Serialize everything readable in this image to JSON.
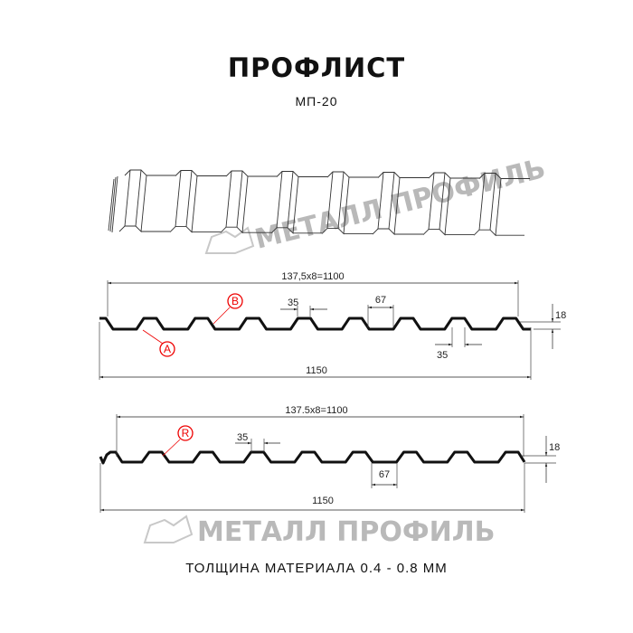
{
  "title": "ПРОФЛИСТ",
  "subtitle": "МП-20",
  "watermark": "МЕТАЛЛ ПРОФИЛЬ",
  "colors": {
    "profile": "#111111",
    "callout": "#e00000",
    "watermark": "#b9b9b9"
  },
  "profile1": {
    "pitch_label": "137,5x8=1100",
    "total_label": "1150",
    "top_label": "35",
    "bottom_label": "35",
    "rib_label": "67",
    "height_label": "18",
    "callouts": [
      "B",
      "A"
    ]
  },
  "profile2": {
    "pitch_label": "137.5x8=1100",
    "total_label": "1150",
    "top_label": "35",
    "rib_label": "67",
    "height_label": "18",
    "callouts": [
      "R"
    ]
  },
  "footer": "ТОЛЩИНА МАТЕРИАЛА 0.4 - 0.8 ММ"
}
